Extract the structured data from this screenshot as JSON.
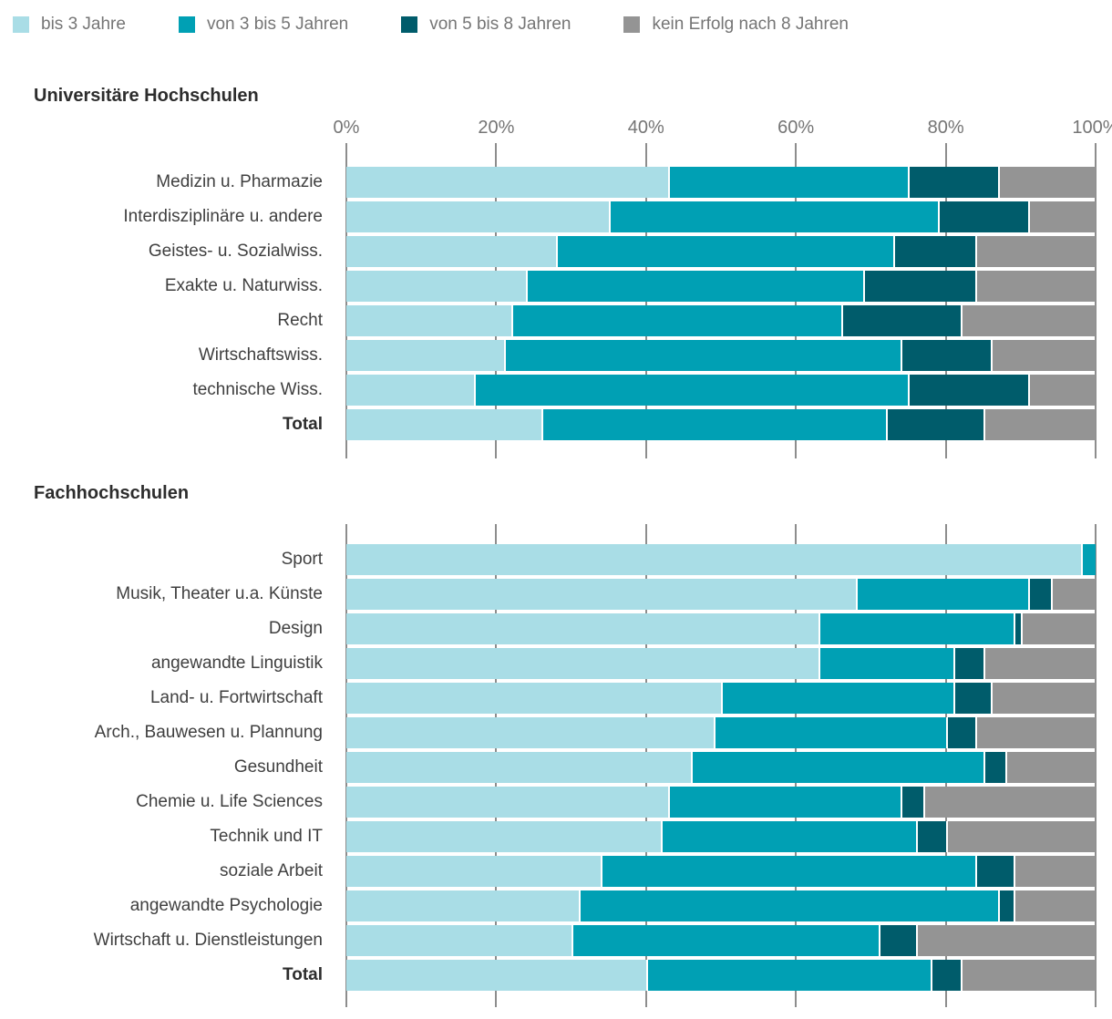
{
  "legend": {
    "items": [
      {
        "label": "bis 3 Jahre",
        "color": "#a9dde6"
      },
      {
        "label": "von 3 bis 5 Jahren",
        "color": "#00a0b4"
      },
      {
        "label": "von 5 bis 8 Jahren",
        "color": "#005c6b"
      },
      {
        "label": "kein Erfolg nach 8 Jahren",
        "color": "#949494"
      }
    ]
  },
  "palette": {
    "segment_colors": [
      "#a9dde6",
      "#00a0b4",
      "#005c6b",
      "#949494"
    ],
    "grid_color": "#8d8d8d",
    "axis_text_color": "#757575",
    "label_text_color": "#3f3f3f",
    "title_text_color": "#2d2d2d"
  },
  "chart_data": [
    {
      "type": "bar",
      "subtype": "horizontal_stacked_percent",
      "title": "Universitäre Hochschulen",
      "x_ticks": [
        "0%",
        "20%",
        "40%",
        "60%",
        "80%",
        "100%"
      ],
      "xlim": [
        0,
        100
      ],
      "show_tick_labels": true,
      "grid": true,
      "legend_position": "top",
      "series_labels": [
        "bis 3 Jahre",
        "von 3 bis 5 Jahren",
        "von 5 bis 8 Jahren",
        "kein Erfolg nach 8 Jahren"
      ],
      "rows": [
        {
          "label": "Medizin u. Pharmazie",
          "values": [
            43,
            32,
            12,
            13
          ],
          "bold": false
        },
        {
          "label": "Interdisziplinäre u. andere",
          "values": [
            35,
            44,
            12,
            9
          ],
          "bold": false
        },
        {
          "label": "Geistes- u. Sozialwiss.",
          "values": [
            28,
            45,
            11,
            16
          ],
          "bold": false
        },
        {
          "label": "Exakte u. Naturwiss.",
          "values": [
            24,
            45,
            15,
            16
          ],
          "bold": false
        },
        {
          "label": "Recht",
          "values": [
            22,
            44,
            16,
            18
          ],
          "bold": false
        },
        {
          "label": "Wirtschaftswiss.",
          "values": [
            21,
            53,
            12,
            14
          ],
          "bold": false
        },
        {
          "label": "technische Wiss.",
          "values": [
            17,
            58,
            16,
            9
          ],
          "bold": false
        },
        {
          "label": "Total",
          "values": [
            26,
            46,
            13,
            15
          ],
          "bold": true
        }
      ]
    },
    {
      "type": "bar",
      "subtype": "horizontal_stacked_percent",
      "title": "Fachhochschulen",
      "x_ticks": [
        "0%",
        "20%",
        "40%",
        "60%",
        "80%",
        "100%"
      ],
      "xlim": [
        0,
        100
      ],
      "show_tick_labels": false,
      "grid": true,
      "legend_position": "top",
      "series_labels": [
        "bis 3 Jahre",
        "von 3 bis 5 Jahren",
        "von 5 bis 8 Jahren",
        "kein Erfolg nach 8 Jahren"
      ],
      "rows": [
        {
          "label": "Sport",
          "values": [
            98,
            2,
            0,
            0
          ],
          "bold": false
        },
        {
          "label": "Musik, Theater u.a. Künste",
          "values": [
            68,
            23,
            3,
            6
          ],
          "bold": false
        },
        {
          "label": "Design",
          "values": [
            63,
            26,
            1,
            10
          ],
          "bold": false
        },
        {
          "label": "angewandte Linguistik",
          "values": [
            63,
            18,
            4,
            15
          ],
          "bold": false
        },
        {
          "label": "Land- u. Fortwirtschaft",
          "values": [
            50,
            31,
            5,
            14
          ],
          "bold": false
        },
        {
          "label": "Arch., Bauwesen u. Plannung",
          "values": [
            49,
            31,
            4,
            16
          ],
          "bold": false
        },
        {
          "label": "Gesundheit",
          "values": [
            46,
            39,
            3,
            12
          ],
          "bold": false
        },
        {
          "label": "Chemie u. Life Sciences",
          "values": [
            43,
            31,
            3,
            23
          ],
          "bold": false
        },
        {
          "label": "Technik und IT",
          "values": [
            42,
            34,
            4,
            20
          ],
          "bold": false
        },
        {
          "label": "soziale Arbeit",
          "values": [
            34,
            50,
            5,
            11
          ],
          "bold": false
        },
        {
          "label": "angewandte Psychologie",
          "values": [
            31,
            56,
            2,
            11
          ],
          "bold": false
        },
        {
          "label": "Wirtschaft u. Dienstleistungen",
          "values": [
            30,
            41,
            5,
            24
          ],
          "bold": false
        },
        {
          "label": "Total",
          "values": [
            40,
            38,
            4,
            18
          ],
          "bold": true
        }
      ]
    }
  ]
}
